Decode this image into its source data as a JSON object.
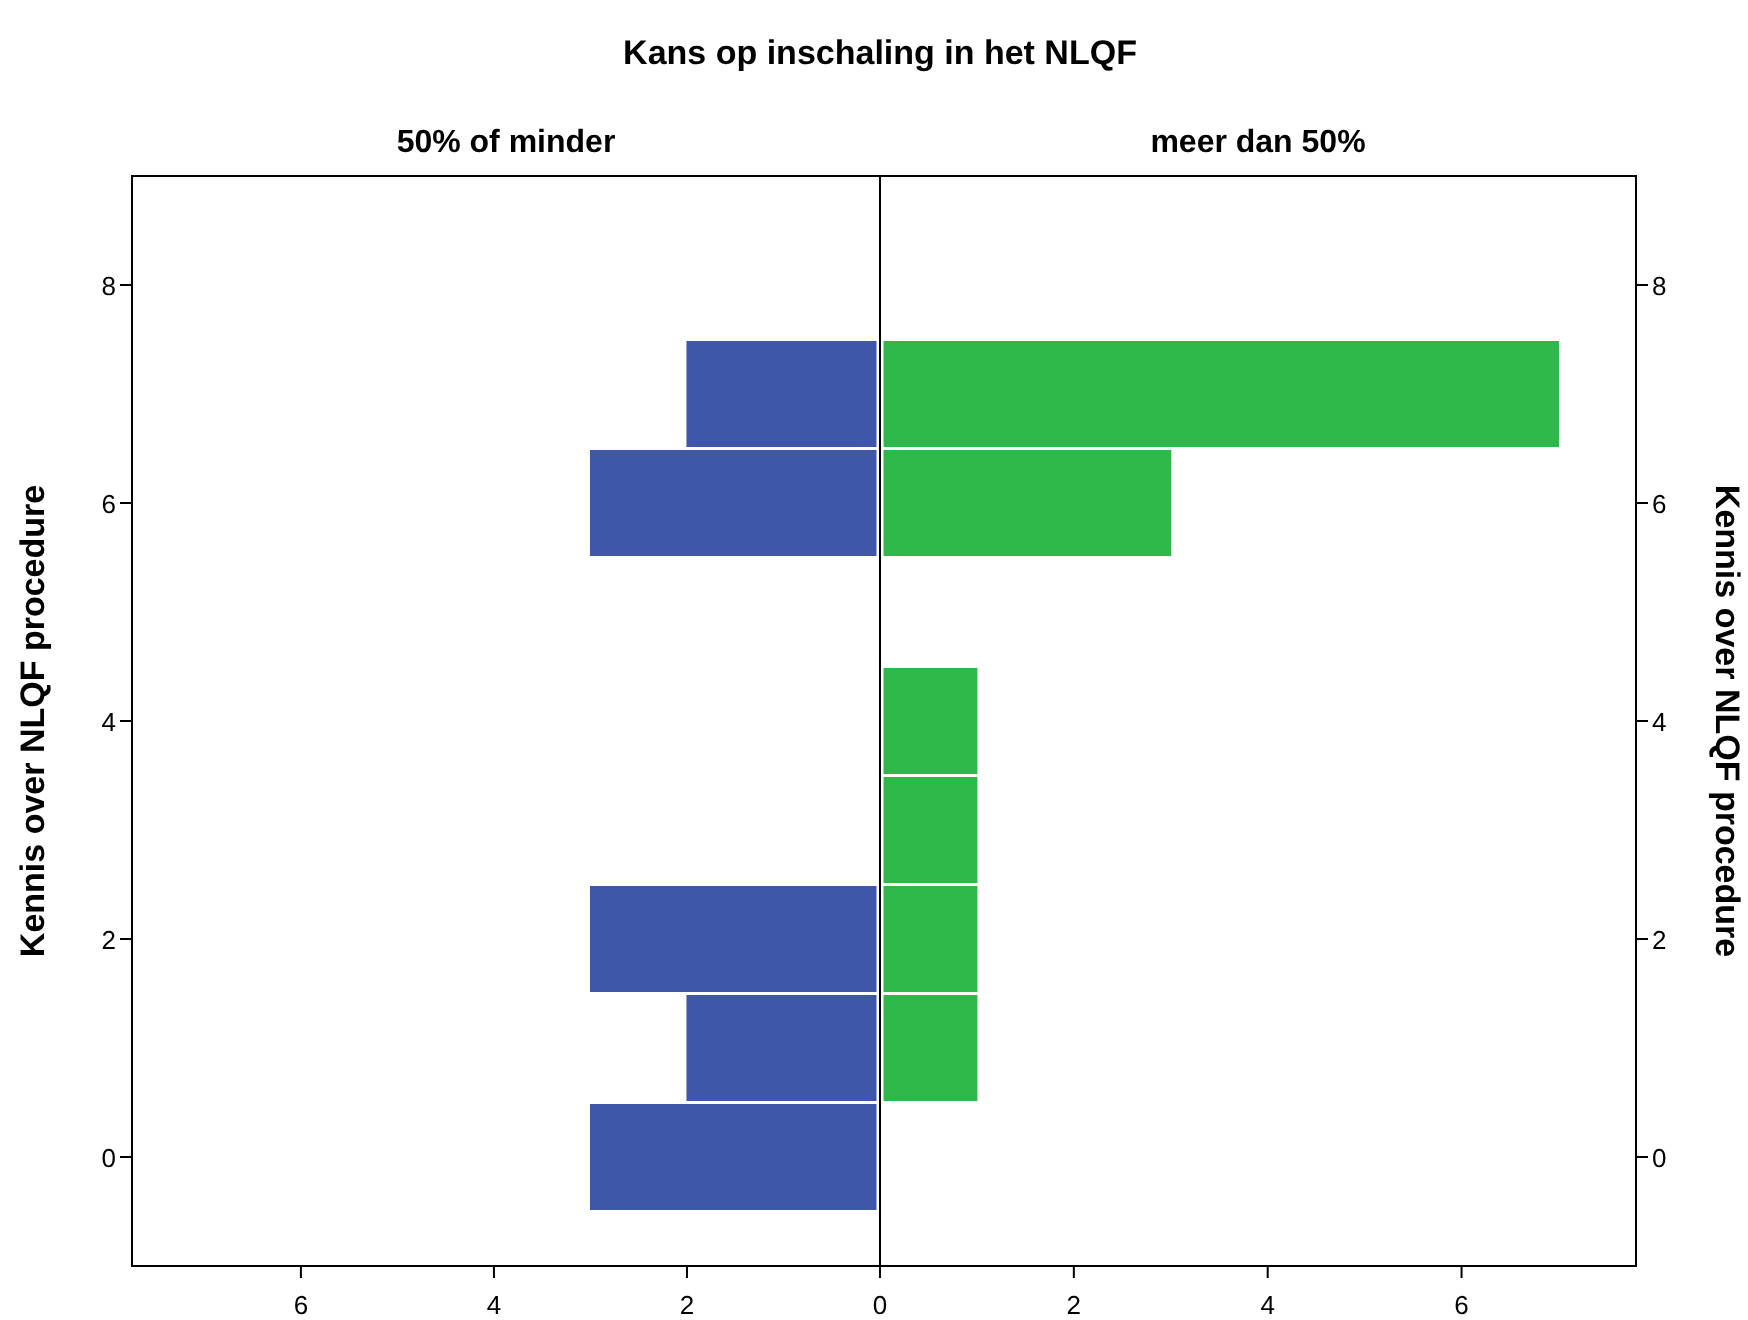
{
  "chart_data": [
    {
      "type": "histogram",
      "orientation": "horizontal",
      "title": "Kans op inschaling in het NLQF",
      "subtitle": "50% of minder",
      "ylabel": "Kennis over NLQF procedure",
      "bins": [
        -0.5,
        0.5,
        1.5,
        2.5,
        3.5,
        4.5,
        5.5,
        6.5,
        7.5
      ],
      "values": [
        3,
        2,
        3,
        0,
        0,
        0,
        3,
        2
      ],
      "color": "#3f57a9",
      "xlim": [
        7.75,
        0
      ],
      "xticks": [
        6,
        4,
        2,
        {
          "value": 0,
          "label": null
        }
      ],
      "ylim": [
        -1,
        9
      ],
      "yticks": [
        0,
        2,
        4,
        6,
        8
      ],
      "grid": false
    },
    {
      "type": "histogram",
      "orientation": "horizontal",
      "subtitle": "meer dan 50%",
      "ylabel": "Kennis over NLQF procedure",
      "bins": [
        -0.5,
        0.5,
        1.5,
        2.5,
        3.5,
        4.5,
        5.5,
        6.5,
        7.5
      ],
      "values": [
        0,
        1,
        1,
        1,
        1,
        0,
        3,
        7
      ],
      "color": "#2eb84a",
      "xlim": [
        0,
        7.8
      ],
      "xticks": [
        0,
        2,
        4,
        6
      ],
      "ylim": [
        -1,
        9
      ],
      "yticks": [
        0,
        2,
        4,
        6,
        8
      ],
      "grid": false
    }
  ]
}
